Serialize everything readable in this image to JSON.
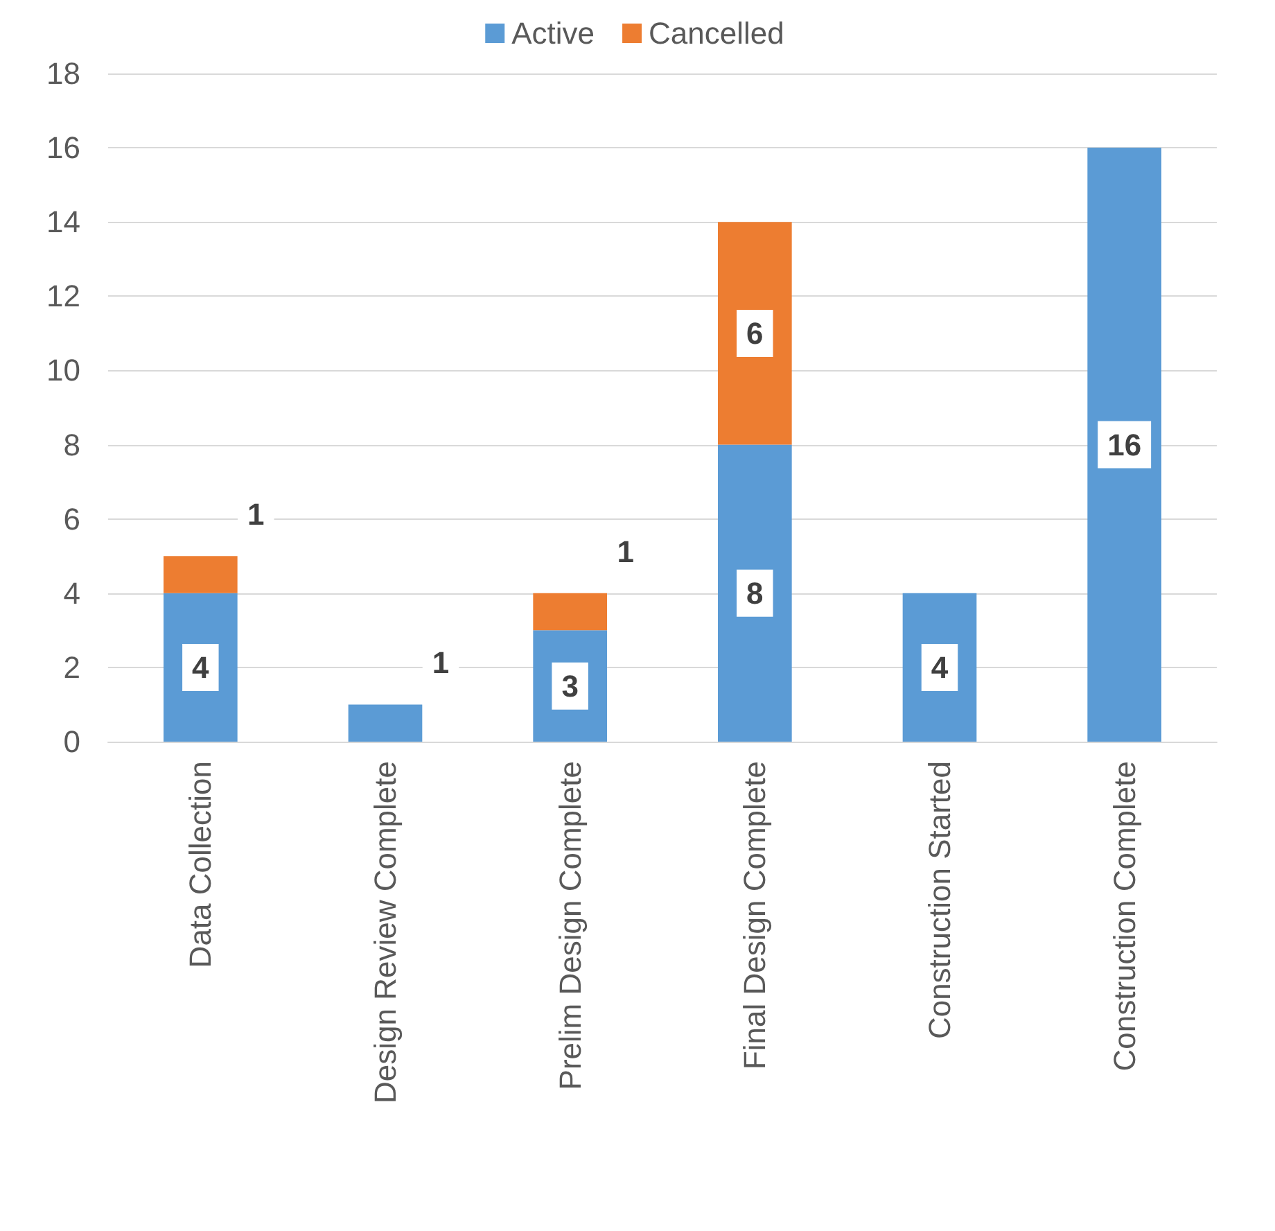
{
  "chart_data": {
    "type": "bar",
    "stacked": true,
    "categories": [
      "Data Collection",
      "Design Review Complete",
      "Prelim Design Complete",
      "Final Design Complete",
      "Construction Started",
      "Construction Complete"
    ],
    "series": [
      {
        "name": "Active",
        "color": "#5b9bd5",
        "values": [
          4,
          1,
          3,
          8,
          4,
          16
        ]
      },
      {
        "name": "Cancelled",
        "color": "#ed7d31",
        "values": [
          1,
          null,
          1,
          6,
          null,
          null
        ]
      }
    ],
    "ylim": [
      0,
      18
    ],
    "yticks": [
      0,
      2,
      4,
      6,
      8,
      10,
      12,
      14,
      16,
      18
    ],
    "grid": "y",
    "legend": "top",
    "data_labels": true
  }
}
